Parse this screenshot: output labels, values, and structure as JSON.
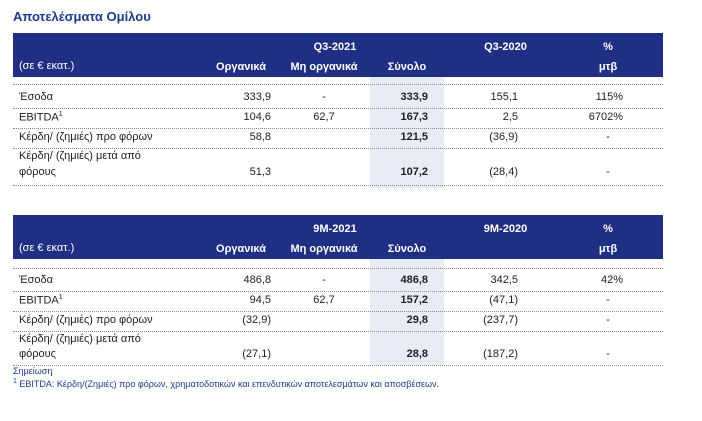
{
  "title": "Αποτελέσματα Ομίλου",
  "tables": [
    {
      "period_current": "Q3-2021",
      "period_prior": "Q3-2020",
      "unit": "(σε € εκατ.)",
      "col_organic": "Οργανικά",
      "col_inorganic": "Μη οργανικά",
      "col_total": "Σύνολο",
      "col_pct_top": "%",
      "col_pct_bottom": "μτβ",
      "rows": [
        {
          "label": "Έσοδα",
          "organic": "333,9",
          "inorganic": "-",
          "total": "333,9",
          "prior": "155,1",
          "pct": "115%"
        },
        {
          "label": "EBITDA",
          "sup": "1",
          "organic": "104,6",
          "inorganic": "62,7",
          "total": "167,3",
          "prior": "2,5",
          "pct": "6702%"
        },
        {
          "label": "Κέρδη/ (ζημιές) προ φόρων",
          "organic": "58,8",
          "inorganic": "",
          "total": "121,5",
          "prior": "(36,9)",
          "pct": "-"
        },
        {
          "label1": "Κέρδη/ (ζημιές) μετά από",
          "label2": "φόρους",
          "organic": "51,3",
          "inorganic": "",
          "total": "107,2",
          "prior": "(28,4)",
          "pct": "-"
        }
      ]
    },
    {
      "period_current": "9M-2021",
      "period_prior": "9M-2020",
      "unit": "(σε € εκατ.)",
      "col_organic": "Οργανικά",
      "col_inorganic": "Μη οργανικά",
      "col_total": "Σύνολο",
      "col_pct_top": "%",
      "col_pct_bottom": "μτβ",
      "rows": [
        {
          "label": "Έσοδα",
          "organic": "486,8",
          "inorganic": "-",
          "total": "486,8",
          "prior": "342,5",
          "pct": "42%"
        },
        {
          "label": "EBITDA",
          "sup": "1",
          "organic": "94,5",
          "inorganic": "62,7",
          "total": "157,2",
          "prior": "(47,1)",
          "pct": "-"
        },
        {
          "label": "Κέρδη/ (ζημιές) προ φόρων",
          "organic": "(32,9)",
          "inorganic": "",
          "total": "29,8",
          "prior": "(237,7)",
          "pct": "-"
        },
        {
          "label1": "Κέρδη/ (ζημιές) μετά από",
          "label2": "φόρους",
          "organic": "(27,1)",
          "inorganic": "",
          "total": "28,8",
          "prior": "(187,2)",
          "pct": "-"
        }
      ]
    }
  ],
  "notes": {
    "heading": "Σημείωση",
    "sup": "1",
    "text": " EBITDA: Κέρδη/(Ζημιές) προ φόρων, χρηματοδοτικών και επενδυτικών αποτελεσμάτων και αποσβέσεων."
  }
}
